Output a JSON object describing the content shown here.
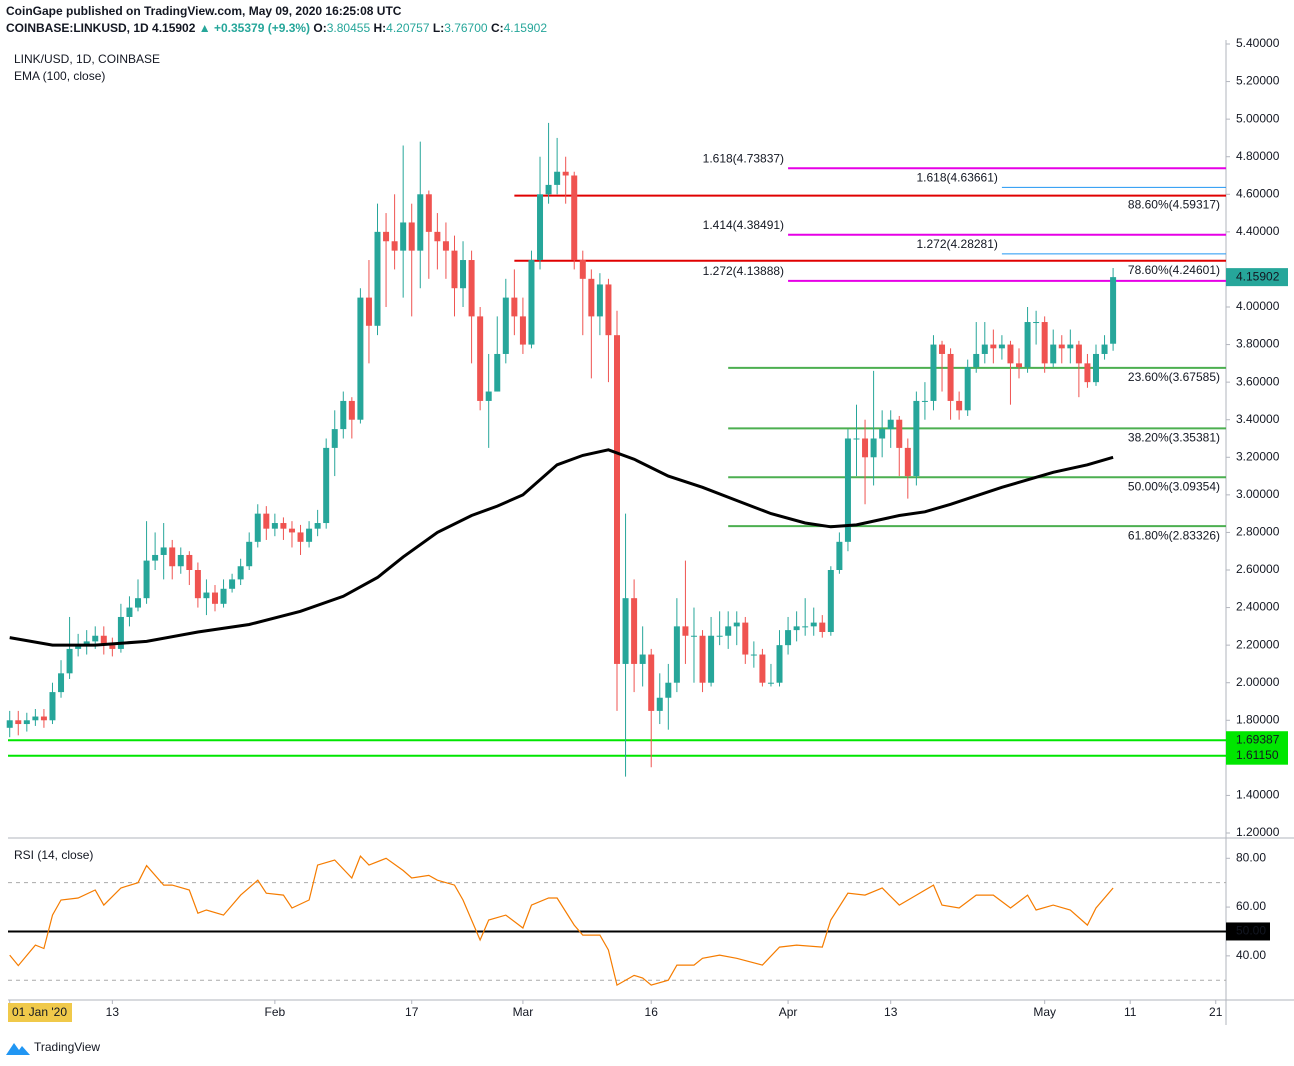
{
  "header": {
    "publisher": "CoinGape published on TradingView.com, May 09, 2020 16:25:08 UTC",
    "symbol": "COINBASE:LINKUSD, 1D",
    "last": "4.15902",
    "change": "▲ +0.35379 (+9.3%)",
    "ohlc": [
      {
        "key": "O:",
        "value": "3.80455"
      },
      {
        "key": "H:",
        "value": "4.20757"
      },
      {
        "key": "L:",
        "value": "3.76700"
      },
      {
        "key": "C:",
        "value": "4.15902"
      }
    ]
  },
  "footer": {
    "brand": "TradingView"
  },
  "chart_data": [
    {
      "type": "candlestick",
      "title": "LINK/USD, 1D, COINBASE",
      "up_color": "#26a69a",
      "down_color": "#ef5350",
      "open": [
        1.76,
        1.8,
        1.78,
        1.8,
        1.82,
        1.8,
        1.95,
        2.05,
        2.18,
        2.2,
        2.22,
        2.25,
        2.2,
        2.18,
        2.35,
        2.4,
        2.45,
        2.65,
        2.68,
        2.72,
        2.62,
        2.68,
        2.6,
        2.45,
        2.48,
        2.42,
        2.5,
        2.55,
        2.62,
        2.75,
        2.9,
        2.82,
        2.85,
        2.82,
        2.8,
        2.75,
        2.82,
        2.85,
        3.25,
        3.35,
        3.5,
        3.4,
        4.05,
        3.9,
        4.4,
        4.35,
        4.3,
        4.45,
        4.3,
        4.6,
        4.4,
        4.35,
        4.3,
        4.1,
        4.25,
        3.95,
        3.5,
        3.55,
        3.75,
        4.05,
        3.95,
        3.8,
        4.25,
        4.6,
        4.65,
        4.72,
        4.7,
        4.25,
        4.15,
        3.95,
        4.12,
        3.85,
        2.1,
        2.45,
        2.1,
        2.15,
        1.85,
        1.92,
        2.0,
        2.3,
        2.25,
        2.25,
        2.0,
        2.25,
        2.25,
        2.3,
        2.32,
        2.15,
        2.15,
        2.0,
        2.0,
        2.2,
        2.28,
        2.3,
        2.3,
        2.32,
        2.27,
        2.6,
        2.75,
        3.3,
        3.3,
        3.2,
        3.3,
        3.35,
        3.4,
        3.25,
        3.1,
        3.5,
        3.5,
        3.8,
        3.75,
        3.5,
        3.45,
        3.68,
        3.75,
        3.8,
        3.78,
        3.8,
        3.7,
        3.68,
        3.92,
        3.92,
        3.7,
        3.8,
        3.78,
        3.8,
        3.7,
        3.6,
        3.75,
        3.80455
      ],
      "high": [
        1.85,
        1.85,
        1.84,
        1.86,
        1.86,
        2.0,
        2.12,
        2.35,
        2.26,
        2.28,
        2.3,
        2.3,
        2.24,
        2.42,
        2.46,
        2.55,
        2.86,
        2.8,
        2.85,
        2.76,
        2.72,
        2.7,
        2.64,
        2.55,
        2.52,
        2.55,
        2.58,
        2.66,
        2.8,
        2.95,
        2.94,
        2.9,
        2.88,
        2.86,
        2.84,
        2.86,
        2.92,
        3.3,
        3.45,
        3.55,
        3.52,
        4.1,
        4.25,
        4.55,
        4.5,
        4.6,
        4.86,
        4.55,
        4.88,
        4.62,
        4.5,
        4.45,
        4.38,
        4.35,
        4.3,
        4.0,
        3.75,
        3.95,
        4.15,
        4.2,
        4.05,
        4.3,
        4.8,
        4.98,
        4.9,
        4.8,
        4.72,
        4.3,
        4.2,
        4.18,
        4.15,
        3.98,
        2.9,
        2.55,
        2.3,
        2.18,
        2.05,
        2.1,
        2.45,
        2.65,
        2.4,
        2.28,
        2.35,
        2.38,
        2.38,
        2.38,
        2.35,
        2.22,
        2.18,
        2.1,
        2.28,
        2.35,
        2.38,
        2.45,
        2.4,
        2.36,
        2.62,
        2.8,
        3.35,
        3.48,
        3.4,
        3.66,
        3.45,
        3.45,
        3.42,
        3.3,
        3.55,
        3.6,
        3.85,
        3.82,
        3.78,
        3.55,
        3.72,
        3.92,
        3.92,
        3.88,
        3.85,
        3.82,
        3.78,
        4.0,
        3.98,
        3.95,
        3.88,
        3.85,
        3.88,
        3.82,
        3.75,
        3.8,
        3.85,
        4.20757
      ],
      "low": [
        1.71,
        1.72,
        1.74,
        1.77,
        1.76,
        1.78,
        1.92,
        2.02,
        2.14,
        2.15,
        2.18,
        2.15,
        2.14,
        2.16,
        2.3,
        2.38,
        2.42,
        2.6,
        2.55,
        2.55,
        2.58,
        2.52,
        2.4,
        2.36,
        2.38,
        2.4,
        2.48,
        2.52,
        2.6,
        2.72,
        2.76,
        2.78,
        2.76,
        2.72,
        2.68,
        2.72,
        2.78,
        2.82,
        3.1,
        3.3,
        3.3,
        3.38,
        3.7,
        3.85,
        4.0,
        4.2,
        4.05,
        3.95,
        4.1,
        4.15,
        4.2,
        4.15,
        3.95,
        4.0,
        3.7,
        3.45,
        3.25,
        3.55,
        3.7,
        3.85,
        3.75,
        3.78,
        4.2,
        4.55,
        4.6,
        4.55,
        4.2,
        3.85,
        3.62,
        3.85,
        3.6,
        1.85,
        1.5,
        1.95,
        1.98,
        1.55,
        1.78,
        1.75,
        1.95,
        2.1,
        2.0,
        1.95,
        1.98,
        2.2,
        2.18,
        2.2,
        2.1,
        2.08,
        1.98,
        1.98,
        1.98,
        2.15,
        2.22,
        2.25,
        2.25,
        2.24,
        2.25,
        2.58,
        2.7,
        3.1,
        2.95,
        3.05,
        3.2,
        3.25,
        3.1,
        2.98,
        3.05,
        3.4,
        3.45,
        3.55,
        3.4,
        3.4,
        3.42,
        3.65,
        3.7,
        3.7,
        3.72,
        3.48,
        3.62,
        3.65,
        3.8,
        3.65,
        3.68,
        3.7,
        3.7,
        3.52,
        3.57,
        3.58,
        3.72,
        3.767
      ],
      "close": [
        1.8,
        1.78,
        1.8,
        1.82,
        1.8,
        1.95,
        2.05,
        2.18,
        2.2,
        2.22,
        2.25,
        2.2,
        2.18,
        2.35,
        2.4,
        2.45,
        2.65,
        2.68,
        2.72,
        2.62,
        2.68,
        2.6,
        2.45,
        2.48,
        2.42,
        2.5,
        2.55,
        2.62,
        2.75,
        2.9,
        2.82,
        2.85,
        2.82,
        2.8,
        2.75,
        2.82,
        2.85,
        3.25,
        3.35,
        3.5,
        3.4,
        4.05,
        3.9,
        4.4,
        4.35,
        4.3,
        4.45,
        4.3,
        4.6,
        4.4,
        4.35,
        4.3,
        4.1,
        4.25,
        3.95,
        3.5,
        3.55,
        3.75,
        4.05,
        3.95,
        3.8,
        4.25,
        4.6,
        4.65,
        4.72,
        4.7,
        4.25,
        4.15,
        3.95,
        4.12,
        3.85,
        2.1,
        2.45,
        2.1,
        2.15,
        1.85,
        1.92,
        2.0,
        2.3,
        2.25,
        2.25,
        2.0,
        2.25,
        2.25,
        2.3,
        2.32,
        2.15,
        2.15,
        2.0,
        2.0,
        2.2,
        2.28,
        2.3,
        2.3,
        2.32,
        2.27,
        2.6,
        2.75,
        3.3,
        3.3,
        3.2,
        3.3,
        3.35,
        3.4,
        3.25,
        3.1,
        3.5,
        3.5,
        3.8,
        3.75,
        3.5,
        3.45,
        3.68,
        3.75,
        3.8,
        3.78,
        3.8,
        3.7,
        3.68,
        3.92,
        3.92,
        3.7,
        3.8,
        3.78,
        3.8,
        3.7,
        3.6,
        3.75,
        3.8,
        4.15902
      ],
      "xlim": [
        -0.2,
        142.2
      ],
      "xticks": [
        {
          "value": 0,
          "label": "01 Jan '20"
        },
        {
          "value": 12,
          "label": "13"
        },
        {
          "value": 31,
          "label": "Feb"
        },
        {
          "value": 47,
          "label": "17"
        },
        {
          "value": 60,
          "label": "Mar"
        },
        {
          "value": 75,
          "label": "16"
        },
        {
          "value": 91,
          "label": "Apr"
        },
        {
          "value": 103,
          "label": "13"
        },
        {
          "value": 121,
          "label": "May"
        },
        {
          "value": 131,
          "label": "11"
        },
        {
          "value": 141,
          "label": "21"
        }
      ],
      "ylim": [
        1.2,
        5.4
      ],
      "yticks": [
        {
          "value": 1.2,
          "label": "1.20000"
        },
        {
          "value": 1.4,
          "label": "1.40000"
        },
        {
          "value": 1.8,
          "label": "1.80000"
        },
        {
          "value": 2.0,
          "label": "2.00000"
        },
        {
          "value": 2.2,
          "label": "2.20000"
        },
        {
          "value": 2.4,
          "label": "2.40000"
        },
        {
          "value": 2.6,
          "label": "2.60000"
        },
        {
          "value": 2.8,
          "label": "2.80000"
        },
        {
          "value": 3.0,
          "label": "3.00000"
        },
        {
          "value": 3.2,
          "label": "3.20000"
        },
        {
          "value": 3.4,
          "label": "3.40000"
        },
        {
          "value": 3.6,
          "label": "3.60000"
        },
        {
          "value": 3.8,
          "label": "3.80000"
        },
        {
          "value": 4.0,
          "label": "4.00000"
        },
        {
          "value": 4.4,
          "label": "4.40000"
        },
        {
          "value": 4.6,
          "label": "4.60000"
        },
        {
          "value": 4.8,
          "label": "4.80000"
        },
        {
          "value": 5.0,
          "label": "5.00000"
        },
        {
          "value": 5.2,
          "label": "5.20000"
        },
        {
          "value": 5.4,
          "label": "5.40000"
        }
      ],
      "ema": {
        "name": "EMA (100, close)",
        "color": "#000000",
        "x": [
          0,
          5,
          10,
          16,
          22,
          28,
          34,
          39,
          43,
          46,
          50,
          54,
          57,
          60,
          64,
          67,
          70,
          73,
          77,
          81,
          85,
          89,
          93,
          96,
          99,
          104,
          107,
          110,
          116,
          122,
          126,
          129
        ],
        "values": [
          2.24,
          2.2,
          2.2,
          2.22,
          2.27,
          2.31,
          2.38,
          2.46,
          2.56,
          2.67,
          2.8,
          2.89,
          2.94,
          3.0,
          3.16,
          3.21,
          3.24,
          3.19,
          3.1,
          3.04,
          2.97,
          2.9,
          2.85,
          2.83,
          2.84,
          2.89,
          2.91,
          2.95,
          3.04,
          3.12,
          3.16,
          3.2
        ]
      },
      "extensions": [
        {
          "label": "1.618(4.73837)",
          "value": 4.73837,
          "start": 91,
          "color": "#e600e6"
        },
        {
          "label": "1.618(4.63661)",
          "value": 4.63661,
          "start": 116,
          "color": "#2196f3"
        },
        {
          "label": "1.414(4.38491)",
          "value": 4.38491,
          "start": 91,
          "color": "#e600e6"
        },
        {
          "label": "1.272(4.28281)",
          "value": 4.28281,
          "start": 116,
          "color": "#2196f3"
        },
        {
          "label": "1.272(4.13888)",
          "value": 4.13888,
          "start": 91,
          "color": "#e600e6"
        }
      ],
      "retracements": [
        {
          "label": "88.60%(4.59317)",
          "value": 4.59317,
          "start": 59,
          "color": "#e00000"
        },
        {
          "label": "78.60%(4.24601)",
          "value": 4.24601,
          "start": 59,
          "color": "#e00000"
        },
        {
          "label": "23.60%(3.67585)",
          "value": 3.67585,
          "start": 84,
          "color": "#4caf50"
        },
        {
          "label": "38.20%(3.35381)",
          "value": 3.35381,
          "start": 84,
          "color": "#4caf50"
        },
        {
          "label": "50.00%(3.09354)",
          "value": 3.09354,
          "start": 84,
          "color": "#4caf50"
        },
        {
          "label": "61.80%(2.83326)",
          "value": 2.83326,
          "start": 84,
          "color": "#4caf50"
        }
      ],
      "supports": {
        "color": "#00e600",
        "values": [
          {
            "value": 1.69387,
            "label": "1.69387"
          },
          {
            "value": 1.6115,
            "label": "1.61150"
          }
        ]
      }
    },
    {
      "type": "line",
      "title": "RSI (14, close)",
      "color": "#f57c00",
      "x": [
        0,
        1,
        3,
        4,
        5,
        6,
        8,
        10,
        11,
        13,
        15,
        16,
        18,
        19,
        21,
        22,
        23,
        25,
        26,
        27,
        29,
        30,
        32,
        33,
        35,
        36,
        38,
        40,
        41,
        42,
        44,
        46,
        47,
        49,
        50,
        52,
        53,
        55,
        56,
        58,
        60,
        61,
        63,
        64,
        66,
        67,
        69,
        70,
        71,
        73,
        74,
        75,
        77,
        78,
        80,
        81,
        83,
        85,
        88,
        90,
        92,
        95,
        96,
        98,
        100,
        102,
        104,
        106,
        108,
        109,
        111,
        113,
        115,
        117,
        119,
        120,
        122,
        124,
        126,
        127,
        129
      ],
      "values": [
        40.3,
        36,
        44.4,
        43,
        56.7,
        62.9,
        63.7,
        67,
        60.8,
        67.8,
        70,
        77,
        69,
        69,
        67,
        57.5,
        58.8,
        56.7,
        60.8,
        64.9,
        71,
        65.7,
        64.9,
        59.6,
        62.9,
        77.2,
        79.3,
        71.9,
        80.9,
        77.2,
        80,
        75,
        71.9,
        73,
        71,
        69,
        62.9,
        46.5,
        54.7,
        56.7,
        51.4,
        60.8,
        63.7,
        63.7,
        52.6,
        48.5,
        48.5,
        42.4,
        28,
        32,
        30.9,
        28,
        30,
        36.2,
        36.2,
        39,
        40.3,
        39,
        36.2,
        43.6,
        44.4,
        43.6,
        54.7,
        65.7,
        64.9,
        67.8,
        60.8,
        64.9,
        69,
        60.8,
        59.6,
        64.9,
        64.9,
        59.6,
        64.9,
        58.8,
        60.8,
        58.8,
        52.6,
        59.6,
        67.8
      ],
      "ylim": [
        21.9,
        87.5
      ],
      "yticks": [
        {
          "value": 40,
          "label": "40.00"
        },
        {
          "value": 60,
          "label": "60.00"
        },
        {
          "value": 80,
          "label": "80.00"
        }
      ],
      "bands": [
        30,
        70
      ],
      "midline": {
        "value": 50,
        "label": "50.00"
      }
    }
  ]
}
